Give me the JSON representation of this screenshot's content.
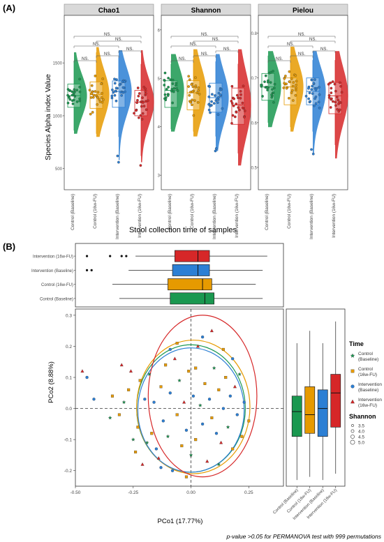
{
  "panel_a": {
    "label": "(A)",
    "ylabel": "Species Alpha index Value",
    "xlabel": "Stool collection time of samples",
    "groups": [
      "Control (Baseline)",
      "Control (16w-FU)",
      "Intervention (Baseline)",
      "Intervention (16w-FU)"
    ],
    "ns_label": "NS.",
    "colors": [
      "#1a9850",
      "#e69a00",
      "#2c7fd4",
      "#d62728"
    ]
  },
  "panel_b": {
    "label": "(B)",
    "xlabel": "PCo1 (17.77%)",
    "ylabel": "PCo2 (8.88%)",
    "footnote": "p-value >0.05 for PERMANOVA test with 999 permutations",
    "legend_time_title": "Time",
    "legend_time": [
      "Control\n(Baseline)",
      "Control\n(16w-FU)",
      "Intervention\n(Baseline)",
      "Intervention\n(16w-FU)"
    ],
    "legend_shannon_title": "Shannon",
    "legend_shannon": [
      "3.5",
      "4.0",
      "4.5",
      "5.0"
    ],
    "top_box_labels": [
      "Intervention (16w-FU)",
      "Intervention (Baseline)",
      "Control (16w-FU)",
      "Control (Baseline)"
    ],
    "side_box_labels": [
      "Control (Baseline)",
      "Control (16w-FU)",
      "Intervention (Baseline)",
      "Intervention (16w-FU)"
    ]
  },
  "chart_data": [
    {
      "type": "violin",
      "title": "Chao1",
      "ylim": [
        300,
        1950
      ],
      "yticks": [
        500,
        1000,
        1500
      ],
      "medians": [
        1190,
        1200,
        1230,
        1130
      ],
      "q1": [
        1080,
        1070,
        1080,
        1000
      ],
      "q3": [
        1300,
        1320,
        1330,
        1240
      ],
      "whisker_low": [
        860,
        830,
        800,
        620
      ],
      "whisker_high": [
        1520,
        1600,
        1550,
        1490
      ],
      "violin_range": [
        [
          830,
          1600
        ],
        [
          800,
          1650
        ],
        [
          580,
          1620
        ],
        [
          560,
          1620
        ]
      ],
      "outliers": [
        [],
        [],
        [
          560,
          620
        ],
        [
          530
        ]
      ]
    },
    {
      "type": "violin",
      "title": "Shannon",
      "ylim": [
        2.7,
        6.3
      ],
      "yticks": [
        3,
        4,
        5,
        6
      ],
      "medians": [
        4.75,
        4.7,
        4.6,
        4.45
      ],
      "q1": [
        4.4,
        4.35,
        4.3,
        4.05
      ],
      "q3": [
        4.95,
        4.95,
        4.9,
        4.8
      ],
      "whisker_low": [
        3.95,
        3.9,
        3.8,
        3.45
      ],
      "whisker_high": [
        5.3,
        5.4,
        5.35,
        5.3
      ],
      "violin_range": [
        [
          3.9,
          5.5
        ],
        [
          3.8,
          5.6
        ],
        [
          3.5,
          5.5
        ],
        [
          3.2,
          5.6
        ]
      ],
      "outliers": [
        [],
        [],
        [
          3.55,
          3.5
        ],
        []
      ]
    },
    {
      "type": "violin",
      "title": "Pielou",
      "ylim": [
        0.45,
        0.84
      ],
      "yticks": [
        0.5,
        0.6,
        0.7,
        0.8
      ],
      "medians": [
        0.68,
        0.68,
        0.67,
        0.66
      ],
      "q1": [
        0.65,
        0.64,
        0.64,
        0.62
      ],
      "q3": [
        0.71,
        0.7,
        0.7,
        0.69
      ],
      "whisker_low": [
        0.6,
        0.59,
        0.58,
        0.55
      ],
      "whisker_high": [
        0.75,
        0.75,
        0.74,
        0.74
      ],
      "violin_range": [
        [
          0.59,
          0.76
        ],
        [
          0.58,
          0.77
        ],
        [
          0.53,
          0.76
        ],
        [
          0.52,
          0.76
        ]
      ],
      "outliers": [
        [],
        [],
        [
          0.54,
          0.53
        ],
        []
      ]
    },
    {
      "type": "scatter",
      "xlim": [
        -0.5,
        0.4
      ],
      "ylim": [
        -0.25,
        0.32
      ],
      "xticks": [
        -0.5,
        -0.25,
        0,
        0.25
      ],
      "xticklabels": [
        "-0.50",
        "-0.25",
        "0.00",
        "0.25"
      ],
      "yticks": [
        -0.2,
        -0.1,
        0.0,
        0.1,
        0.2,
        0.3
      ],
      "yticklabels": [
        "-0.2",
        "-0.1",
        "0.0",
        "0.1",
        "0.2",
        "0.3"
      ],
      "ellipses": [
        {
          "group": 0,
          "cx": 0.0,
          "cy": 0.0,
          "rx": 0.235,
          "ry": 0.205
        },
        {
          "group": 1,
          "cx": 0.01,
          "cy": 0.005,
          "rx": 0.245,
          "ry": 0.215
        },
        {
          "group": 2,
          "cx": 0.0,
          "cy": -0.005,
          "rx": 0.23,
          "ry": 0.2
        },
        {
          "group": 3,
          "cx": 0.05,
          "cy": 0.04,
          "rx": 0.235,
          "ry": 0.26
        }
      ],
      "points": [
        [
          -0.47,
          0.12,
          3
        ],
        [
          -0.45,
          0.1,
          2
        ],
        [
          -0.42,
          0.03,
          2
        ],
        [
          -0.34,
          0.04,
          1
        ],
        [
          -0.31,
          -0.02,
          1
        ],
        [
          -0.29,
          0.02,
          0
        ],
        [
          -0.3,
          0.14,
          3
        ],
        [
          -0.27,
          0.06,
          1
        ],
        [
          -0.25,
          -0.1,
          0
        ],
        [
          -0.23,
          -0.06,
          1
        ],
        [
          -0.22,
          0.09,
          1
        ],
        [
          -0.2,
          0.03,
          2
        ],
        [
          -0.19,
          -0.11,
          0
        ],
        [
          -0.18,
          0.11,
          0
        ],
        [
          -0.17,
          -0.08,
          1
        ],
        [
          -0.16,
          0.02,
          2
        ],
        [
          -0.15,
          -0.13,
          2
        ],
        [
          -0.14,
          -0.16,
          3
        ],
        [
          -0.13,
          0.07,
          1
        ],
        [
          -0.12,
          -0.04,
          2
        ],
        [
          -0.11,
          0.14,
          1
        ],
        [
          -0.1,
          -0.09,
          0
        ],
        [
          -0.09,
          0.05,
          2
        ],
        [
          -0.08,
          -0.2,
          2
        ],
        [
          -0.07,
          0.16,
          3
        ],
        [
          -0.06,
          -0.02,
          1
        ],
        [
          -0.05,
          0.09,
          0
        ],
        [
          -0.04,
          -0.12,
          1
        ],
        [
          -0.03,
          0.02,
          3
        ],
        [
          -0.02,
          -0.07,
          2
        ],
        [
          -0.01,
          0.12,
          1
        ],
        [
          0.0,
          -0.15,
          0
        ],
        [
          0.01,
          0.04,
          2
        ],
        [
          0.02,
          -0.1,
          1
        ],
        [
          0.03,
          0.2,
          3
        ],
        [
          0.04,
          0.01,
          0
        ],
        [
          0.05,
          -0.05,
          2
        ],
        [
          0.06,
          0.08,
          1
        ],
        [
          0.07,
          -0.17,
          3
        ],
        [
          0.08,
          0.03,
          2
        ],
        [
          0.09,
          -0.03,
          1
        ],
        [
          0.1,
          0.13,
          0
        ],
        [
          0.11,
          -0.08,
          2
        ],
        [
          0.12,
          0.06,
          1
        ],
        [
          0.13,
          -0.11,
          3
        ],
        [
          0.14,
          0.0,
          2
        ],
        [
          0.15,
          0.1,
          1
        ],
        [
          0.16,
          -0.06,
          0
        ],
        [
          0.17,
          0.04,
          2
        ],
        [
          0.18,
          -0.13,
          1
        ],
        [
          0.19,
          0.07,
          3
        ],
        [
          0.2,
          -0.02,
          2
        ],
        [
          0.21,
          0.11,
          0
        ],
        [
          0.22,
          -0.09,
          1
        ],
        [
          0.23,
          0.02,
          2
        ],
        [
          -0.24,
          -0.14,
          1
        ],
        [
          -0.21,
          -0.18,
          3
        ],
        [
          -0.13,
          -0.19,
          2
        ],
        [
          -0.06,
          0.21,
          1
        ],
        [
          0.05,
          0.23,
          2
        ],
        [
          0.09,
          0.25,
          3
        ],
        [
          0.14,
          0.19,
          1
        ],
        [
          0.18,
          0.16,
          2
        ],
        [
          -0.35,
          -0.03,
          0
        ],
        [
          -0.26,
          0.12,
          3
        ],
        [
          0.25,
          -0.04,
          1
        ],
        [
          0.12,
          -0.18,
          0
        ],
        [
          -0.02,
          -0.22,
          1
        ],
        [
          -0.09,
          0.19,
          2
        ],
        [
          0.02,
          0.13,
          1
        ]
      ]
    },
    {
      "type": "box",
      "orientation": "horizontal",
      "axis": "PCo1",
      "groups_top_to_bottom": [
        "Intervention (16w-FU)",
        "Intervention (Baseline)",
        "Control (16w-FU)",
        "Control (Baseline)"
      ],
      "q1": [
        -0.07,
        -0.08,
        -0.1,
        -0.09
      ],
      "median": [
        0.03,
        0.03,
        0.05,
        0.06
      ],
      "q3": [
        0.08,
        0.08,
        0.09,
        0.1
      ],
      "whisker_low": [
        -0.24,
        -0.27,
        -0.34,
        -0.31
      ],
      "whisker_high": [
        0.33,
        0.31,
        0.28,
        0.31
      ],
      "outliers": [
        [
          -0.45,
          -0.35,
          -0.3,
          -0.28
        ],
        [
          -0.45,
          -0.43
        ],
        [],
        []
      ]
    },
    {
      "type": "box",
      "orientation": "vertical",
      "axis": "PCo2",
      "groups": [
        "Control (Baseline)",
        "Control (16w-FU)",
        "Intervention (Baseline)",
        "Intervention (16w-FU)"
      ],
      "q1": [
        -0.09,
        -0.08,
        -0.09,
        -0.06
      ],
      "median": [
        -0.01,
        -0.02,
        0.0,
        0.05
      ],
      "q3": [
        0.04,
        0.07,
        0.06,
        0.11
      ],
      "whisker_low": [
        -0.23,
        -0.22,
        -0.23,
        -0.21
      ],
      "whisker_high": [
        0.21,
        0.25,
        0.21,
        0.28
      ]
    }
  ]
}
